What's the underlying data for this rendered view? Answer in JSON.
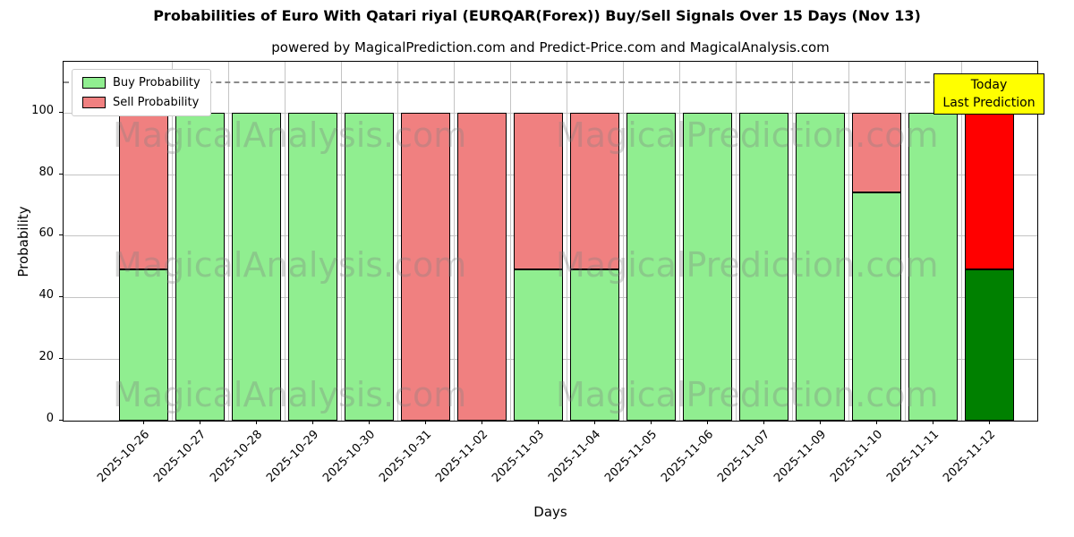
{
  "figure": {
    "title": "Probabilities of Euro With Qatari riyal (EURQAR(Forex)) Buy/Sell Signals Over 15 Days (Nov 13)",
    "subtitle": "powered by MagicalPrediction.com and Predict-Price.com and MagicalAnalysis.com"
  },
  "chart_data": {
    "type": "bar",
    "stacked": true,
    "title": "Probabilities of Euro With Qatari riyal (EURQAR(Forex)) Buy/Sell Signals Over 15 Days (Nov 13)",
    "subtitle": "powered by MagicalPrediction.com and Predict-Price.com and MagicalAnalysis.com",
    "xlabel": "Days",
    "ylabel": "Probability",
    "ylim": [
      0,
      116.5
    ],
    "yticks": [
      0,
      20,
      40,
      60,
      80,
      100
    ],
    "grid": true,
    "dashed_line_y": 110,
    "legend_position": "upper left",
    "bar_edge_color": "#000000",
    "categories": [
      "2025-10-26",
      "2025-10-27",
      "2025-10-28",
      "2025-10-29",
      "2025-10-30",
      "2025-10-31",
      "2025-11-02",
      "2025-11-03",
      "2025-11-04",
      "2025-11-05",
      "2025-11-06",
      "2025-11-07",
      "2025-11-09",
      "2025-11-10",
      "2025-11-11",
      "2025-11-12"
    ],
    "series": [
      {
        "name": "Buy Probability",
        "color": "#90EE90",
        "values": [
          49,
          100,
          100,
          100,
          100,
          0,
          0,
          49,
          49,
          100,
          100,
          100,
          100,
          74,
          100,
          49
        ]
      },
      {
        "name": "Sell Probability",
        "color": "#F08080",
        "values": [
          51,
          0,
          0,
          0,
          0,
          100,
          100,
          51,
          51,
          0,
          0,
          0,
          0,
          26,
          0,
          51
        ]
      }
    ],
    "today_bar": {
      "index": 15,
      "buy_color": "#008000",
      "sell_color": "#FF0000"
    }
  },
  "annotation": {
    "lines": [
      "Today",
      "Last Prediction"
    ],
    "bg_color": "#FFFF00"
  },
  "watermarks": {
    "left": "MagicalAnalysis.com",
    "right": "MagicalPrediction.com"
  }
}
